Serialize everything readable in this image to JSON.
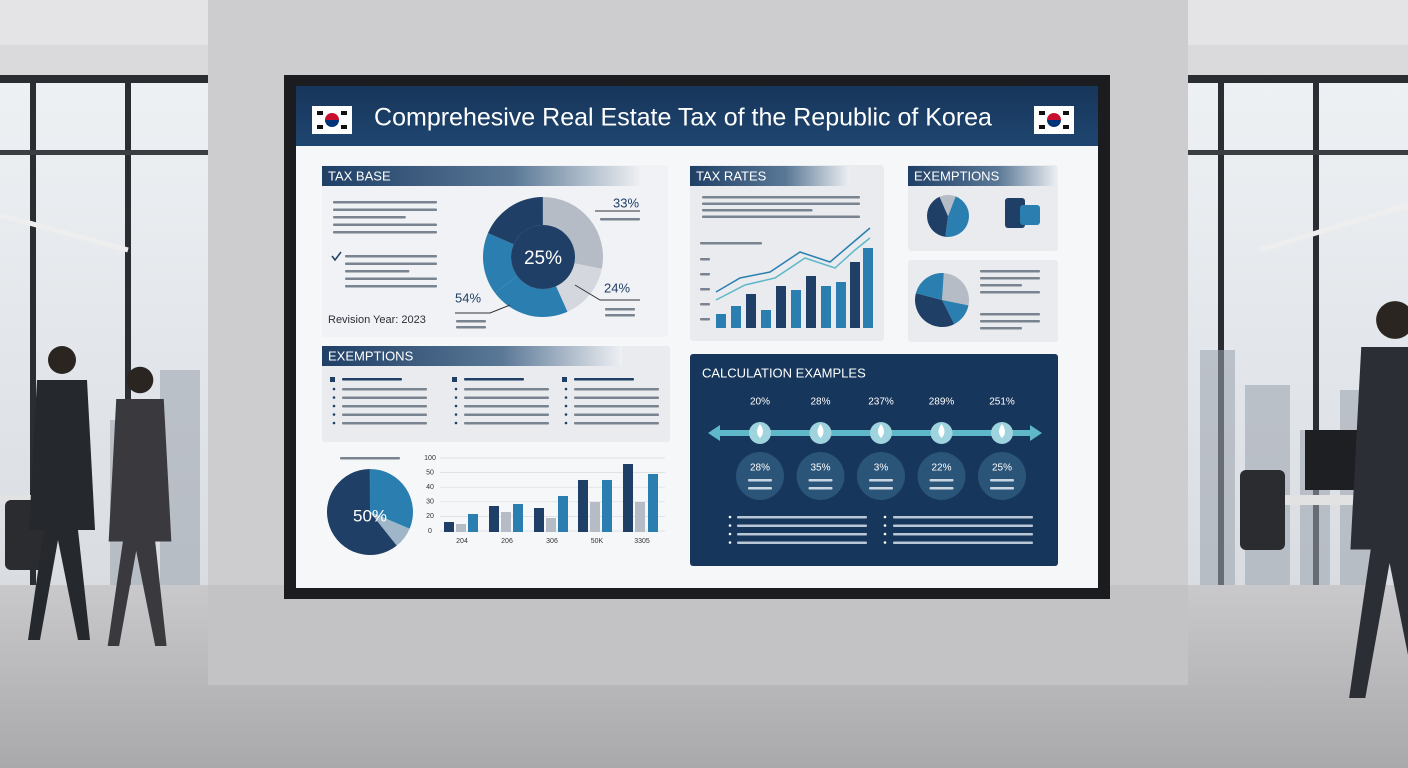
{
  "title": "Comprehesive Real Estate Tax of the Republic of Korea",
  "tax_base": {
    "heading": "TAX BASE",
    "center_label": "25%",
    "top_label": "33%",
    "right_label": "24%",
    "left_label": "54%",
    "revision": "Revision Year: 2023"
  },
  "tax_rates": {
    "heading": "TAX RATES"
  },
  "exemptions_side": {
    "heading": "EXEMPTIONS"
  },
  "exemptions": {
    "heading": "EXEMPTIONS"
  },
  "bottom_charts": {
    "pie_label": "50%",
    "y_labels": [
      "100",
      "50",
      "40",
      "30",
      "20",
      "0"
    ],
    "x_labels": [
      "204",
      "206",
      "306",
      "50K",
      "3305"
    ]
  },
  "calculation": {
    "heading": "CALCULATION EXAMPLES",
    "top_labels": [
      "20%",
      "28%",
      "237%",
      "289%",
      "251%"
    ],
    "bubble_labels": [
      "28%",
      "35%",
      "3%",
      "22%",
      "25%"
    ]
  }
}
